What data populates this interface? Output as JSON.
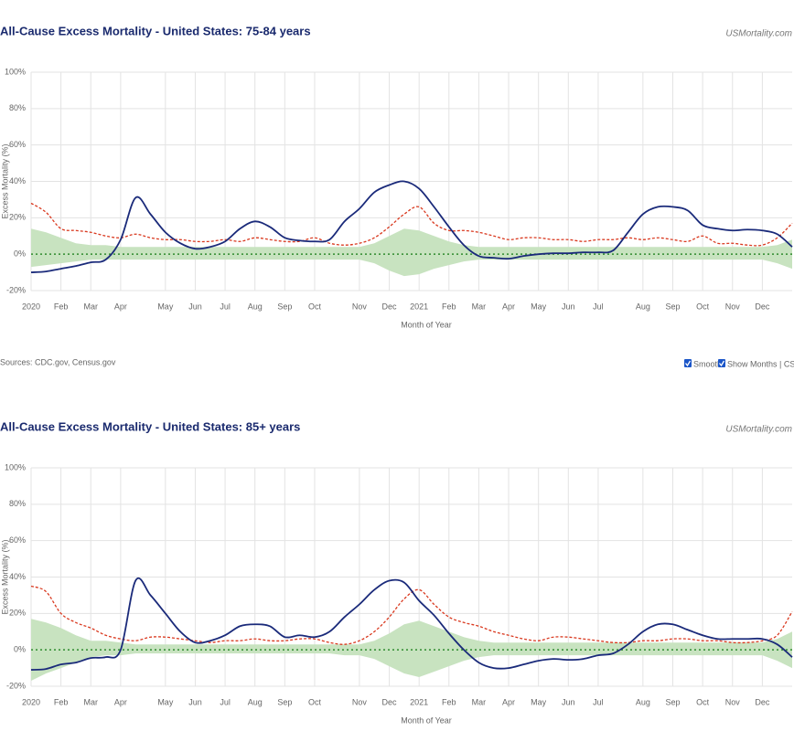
{
  "chart_data": [
    {
      "type": "line",
      "title": "All-Cause Excess Mortality - United States: 75-84 years",
      "credit": "USMortality.com",
      "x_label": "Month of Year",
      "y_label": "Excess Mortality (%)",
      "source": "Sources: CDC.gov, Census.gov",
      "controls": [
        "Smooth",
        "Show Months | CSV | ▲"
      ],
      "categories": [
        "2020",
        null,
        "Feb",
        null,
        "Mar",
        null,
        "Apr",
        null,
        null,
        "May",
        null,
        "Jun",
        null,
        "Jul",
        null,
        "Aug",
        null,
        "Sep",
        null,
        "Oct",
        null,
        null,
        "Nov",
        null,
        "Dec",
        null,
        "2021",
        null,
        "Feb",
        null,
        "Mar",
        null,
        "Apr",
        null,
        "May",
        null,
        "Jun",
        null,
        "Jul",
        null,
        null,
        "Aug",
        null,
        "Sep",
        null,
        "Oct",
        null,
        "Nov",
        null,
        "Dec",
        null,
        null
      ],
      "ylim": [
        -20,
        100
      ],
      "yticks": [
        {
          "value": -20,
          "label": "-20%"
        },
        {
          "value": 0,
          "label": "0%"
        },
        {
          "value": 20,
          "label": "20%"
        },
        {
          "value": 40,
          "label": "40%"
        },
        {
          "value": 60,
          "label": "60%"
        },
        {
          "value": 80,
          "label": "80%"
        },
        {
          "value": 100,
          "label": "100%"
        }
      ],
      "grid": true,
      "band": {
        "color": "#c8e3c0",
        "upper": [
          14,
          12,
          9,
          6,
          5,
          5,
          4,
          4,
          4,
          4,
          4,
          4,
          4,
          4,
          4,
          4,
          4,
          4,
          4,
          4,
          4,
          4,
          4,
          6,
          10,
          14,
          13,
          10,
          7,
          5,
          4,
          4,
          4,
          4,
          4,
          4,
          4,
          4,
          4,
          4,
          4,
          4,
          4,
          4,
          4,
          4,
          4,
          4,
          4,
          4,
          5,
          8
        ],
        "lower": [
          -7,
          -6,
          -5,
          -4,
          -3,
          -3,
          -3,
          -3,
          -3,
          -3,
          -3,
          -3,
          -3,
          -3,
          -3,
          -3,
          -3,
          -3,
          -3,
          -3,
          -3,
          -3,
          -3,
          -5,
          -9,
          -12,
          -11,
          -8,
          -6,
          -4,
          -3,
          -3,
          -3,
          -3,
          -3,
          -3,
          -3,
          -3,
          -3,
          -3,
          -3,
          -3,
          -3,
          -3,
          -3,
          -3,
          -3,
          -3,
          -3,
          -3,
          -5,
          -8
        ]
      },
      "series": [
        {
          "color": "#d9381e",
          "dashed": true,
          "values": [
            28,
            23,
            14,
            13,
            12,
            10,
            9,
            11,
            9,
            8,
            8,
            7,
            7,
            8,
            7,
            9,
            8,
            7,
            7,
            9,
            6,
            5,
            6,
            9,
            15,
            22,
            26,
            17,
            13,
            13,
            12,
            10,
            8,
            9,
            9,
            8,
            8,
            7,
            8,
            8,
            9,
            8,
            9,
            8,
            7,
            10,
            6,
            6,
            5,
            5,
            9,
            17
          ]
        },
        {
          "color": "#1a2a7a",
          "dashed": false,
          "values": [
            -10,
            -9.5,
            -8,
            -6.5,
            -4.5,
            -3,
            8,
            31,
            22,
            12,
            6,
            3,
            4,
            7,
            14,
            18,
            15,
            9,
            7.5,
            7,
            8,
            18,
            25,
            34,
            38,
            40,
            36,
            26,
            15,
            5,
            -1,
            -2,
            -2.5,
            -1,
            0,
            0.5,
            0.5,
            1,
            1,
            2,
            12,
            22,
            26,
            26,
            24,
            16,
            14,
            13,
            13.5,
            13,
            11,
            4
          ]
        }
      ]
    },
    {
      "type": "line",
      "title": "All-Cause Excess Mortality - United States: 85+ years",
      "credit": "USMortality.com",
      "x_label": "Month of Year",
      "y_label": "Excess Mortality (%)",
      "categories": [
        "2020",
        null,
        "Feb",
        null,
        "Mar",
        null,
        "Apr",
        null,
        null,
        "May",
        null,
        "Jun",
        null,
        "Jul",
        null,
        "Aug",
        null,
        "Sep",
        null,
        "Oct",
        null,
        null,
        "Nov",
        null,
        "Dec",
        null,
        "2021",
        null,
        "Feb",
        null,
        "Mar",
        null,
        "Apr",
        null,
        "May",
        null,
        "Jun",
        null,
        "Jul",
        null,
        null,
        "Aug",
        null,
        "Sep",
        null,
        "Oct",
        null,
        "Nov",
        null,
        "Dec",
        null,
        null
      ],
      "ylim": [
        -20,
        100
      ],
      "yticks": [
        {
          "value": -20,
          "label": "-20%"
        },
        {
          "value": 0,
          "label": "0%"
        },
        {
          "value": 20,
          "label": "20%"
        },
        {
          "value": 40,
          "label": "40%"
        },
        {
          "value": 60,
          "label": "60%"
        },
        {
          "value": 80,
          "label": "80%"
        },
        {
          "value": 100,
          "label": "100%"
        }
      ],
      "grid": true,
      "band": {
        "color": "#c8e3c0",
        "upper": [
          17,
          15,
          12,
          8,
          5,
          5,
          4,
          3,
          3,
          3,
          3,
          3,
          3,
          3,
          3,
          3,
          3,
          3,
          3,
          3,
          3,
          3,
          3,
          5,
          9,
          14,
          16,
          13,
          10,
          7,
          5,
          4,
          4,
          4,
          4,
          4,
          4,
          4,
          4,
          4,
          4,
          4,
          4,
          4,
          4,
          4,
          4,
          4,
          4,
          4,
          6,
          10
        ],
        "lower": [
          -17,
          -13,
          -10,
          -7,
          -4,
          -3,
          -3,
          -2,
          -2,
          -2,
          -2,
          -2,
          -2,
          -2,
          -2,
          -2,
          -2,
          -2,
          -2,
          -2,
          -2,
          -3,
          -3,
          -5,
          -9,
          -13,
          -15,
          -12,
          -9,
          -6,
          -4,
          -3,
          -3,
          -3,
          -3,
          -3,
          -3,
          -3,
          -3,
          -3,
          -3,
          -3,
          -3,
          -3,
          -3,
          -3,
          -3,
          -3,
          -3,
          -3,
          -6,
          -10
        ]
      },
      "series": [
        {
          "color": "#d9381e",
          "dashed": true,
          "values": [
            35,
            32,
            20,
            15,
            12,
            8,
            6,
            5,
            7,
            7,
            6,
            5,
            4,
            5,
            5,
            6,
            5,
            5,
            6,
            6,
            4,
            3,
            5,
            10,
            18,
            28,
            33,
            25,
            18,
            15,
            13,
            10,
            8,
            6,
            5,
            7,
            7,
            6,
            5,
            4,
            4,
            5,
            5,
            6,
            6,
            5,
            5,
            4,
            4,
            5,
            8,
            21
          ]
        },
        {
          "color": "#1a2a7a",
          "dashed": false,
          "values": [
            -11,
            -10.5,
            -8,
            -7,
            -4.5,
            -4,
            0,
            38,
            30,
            20,
            10,
            4,
            5,
            8,
            13,
            14,
            13,
            7,
            8,
            7,
            10,
            18,
            25,
            33,
            38,
            37,
            27,
            19,
            9,
            0,
            -7,
            -10,
            -10,
            -8,
            -6,
            -5,
            -5.5,
            -5,
            -3,
            -2,
            3,
            10,
            14,
            14,
            11,
            8,
            6,
            6,
            6,
            6,
            3,
            -4
          ]
        }
      ]
    }
  ]
}
